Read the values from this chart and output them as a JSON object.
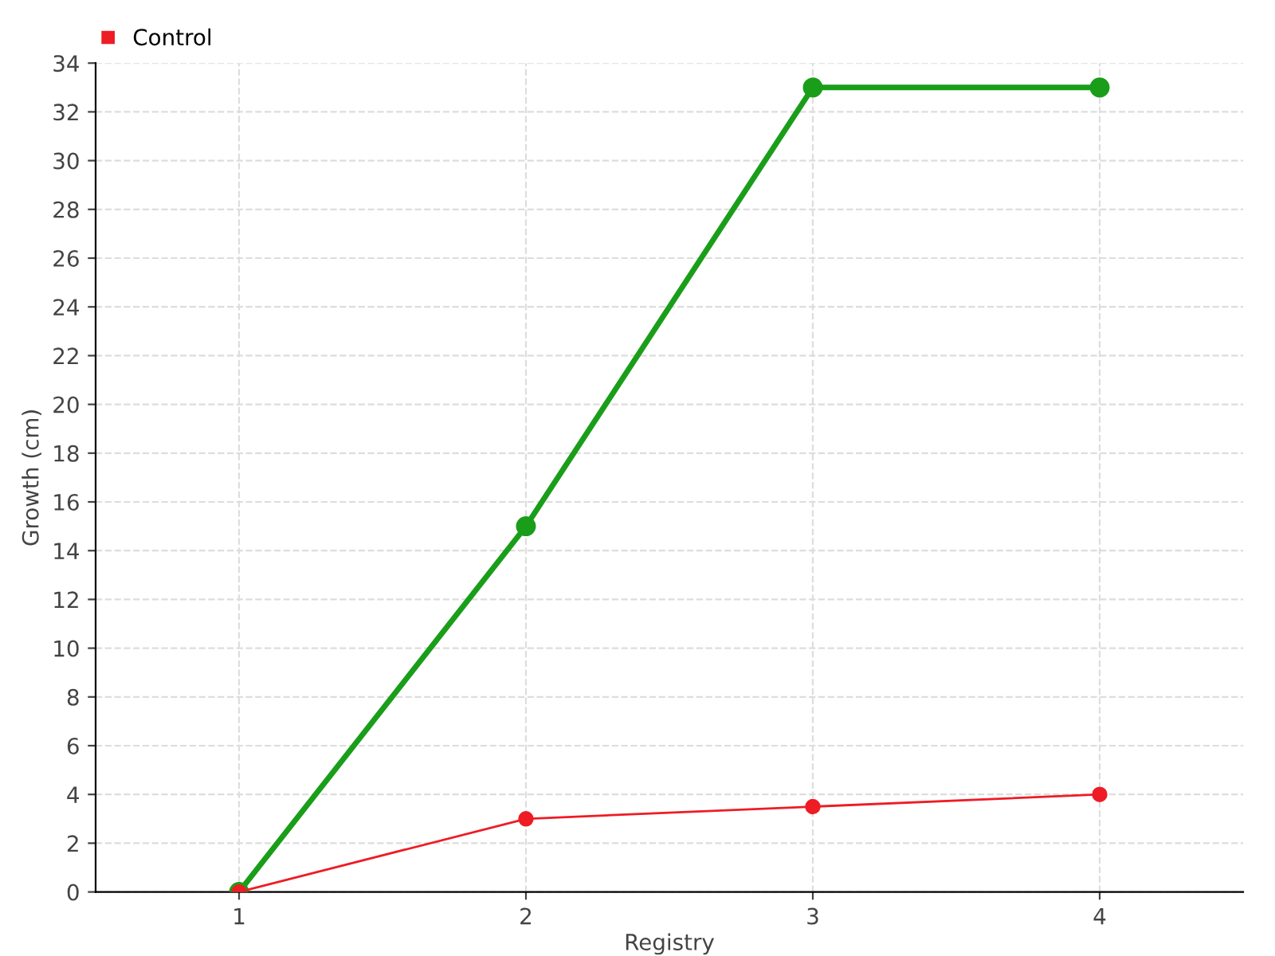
{
  "chart_data": {
    "type": "line",
    "xlabel": "Registry",
    "ylabel": "Growth (cm)",
    "x": [
      1,
      2,
      3,
      4
    ],
    "xlim": [
      0.5,
      4.5
    ],
    "xticks": [
      1,
      2,
      3,
      4
    ],
    "ylim": [
      0,
      34
    ],
    "yticks": [
      0,
      2,
      4,
      6,
      8,
      10,
      12,
      14,
      16,
      18,
      20,
      22,
      24,
      26,
      28,
      30,
      32,
      34
    ],
    "series": [
      {
        "color": "#1a9e1a",
        "values": [
          0,
          15,
          33,
          33
        ]
      },
      {
        "name": "Control",
        "color": "#ee1c25",
        "values": [
          0,
          3,
          3.5,
          4
        ]
      }
    ],
    "grid": true,
    "legend": "top left",
    "marker": "circle",
    "line_style": "solid"
  }
}
